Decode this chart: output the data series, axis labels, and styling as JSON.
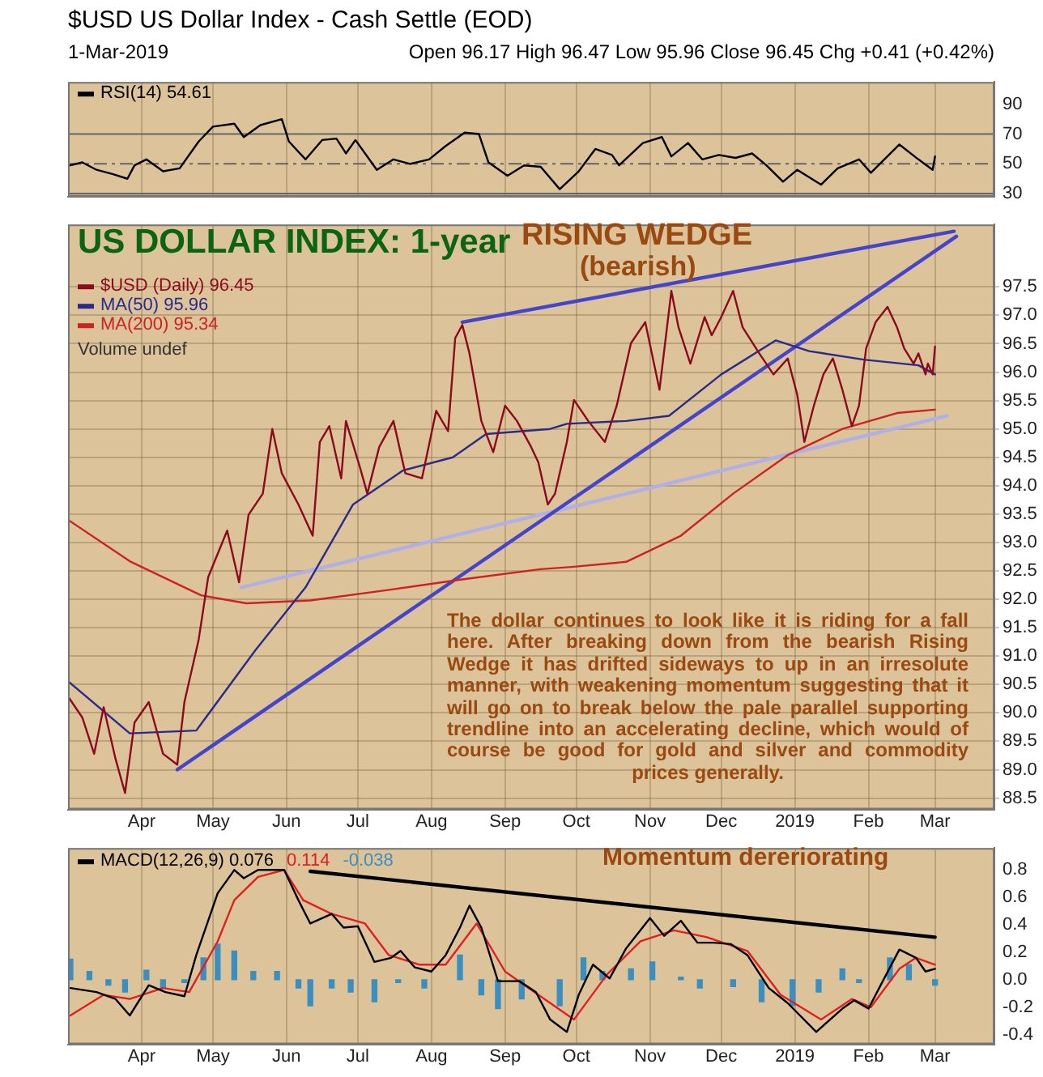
{
  "chart_data": [
    {
      "type": "line",
      "title": "$USD US Dollar Index - Cash Settle (EOD)",
      "annotations": [
        "1-Mar-2019",
        "Open 96.17 High 96.47 Low 95.96 Close 96.45 Chg +0.41 (+0.42%)"
      ],
      "xlim": [
        "2018-03-01",
        "2019-03-26"
      ],
      "xticks": [
        {
          "value": "2018-04-01",
          "label": null
        },
        {
          "value": "2018-05-01",
          "label": null
        },
        {
          "value": "2018-06-01",
          "label": null
        },
        {
          "value": "2018-07-01",
          "label": null
        },
        {
          "value": "2018-08-01",
          "label": null
        },
        {
          "value": "2018-09-01",
          "label": null
        },
        {
          "value": "2018-10-01",
          "label": null
        },
        {
          "value": "2018-11-01",
          "label": null
        },
        {
          "value": "2018-12-01",
          "label": null
        },
        {
          "value": "2019-01-01",
          "label": null
        },
        {
          "value": "2019-02-01",
          "label": null
        },
        {
          "value": "2019-03-01",
          "label": null
        }
      ],
      "ylim": [
        28,
        105
      ],
      "yticks": [
        30,
        50,
        70,
        90
      ],
      "grid": "x",
      "tick_labels": "y",
      "legend": "top left",
      "ref_lines": [
        {
          "axis": "y",
          "value": 70,
          "color": "#666666"
        },
        {
          "axis": "y",
          "value": 50,
          "color": "#666666",
          "line_style": "dashed"
        },
        {
          "axis": "y",
          "value": 30,
          "color": "#666666"
        }
      ],
      "series": [
        {
          "name": "RSI(14) 54.61",
          "color": "#000000",
          "x": [
            "2018-03-02",
            "2018-03-07",
            "2018-03-13",
            "2018-03-20",
            "2018-03-26",
            "2018-03-29",
            "2018-04-03",
            "2018-04-10",
            "2018-04-17",
            "2018-04-25",
            "2018-05-01",
            "2018-05-10",
            "2018-05-14",
            "2018-05-21",
            "2018-05-30",
            "2018-06-02",
            "2018-06-09",
            "2018-06-16",
            "2018-06-22",
            "2018-06-26",
            "2018-06-30",
            "2018-07-09",
            "2018-07-16",
            "2018-07-23",
            "2018-07-31",
            "2018-08-07",
            "2018-08-15",
            "2018-08-21",
            "2018-08-25",
            "2018-09-02",
            "2018-09-09",
            "2018-09-16",
            "2018-09-24",
            "2018-10-02",
            "2018-10-09",
            "2018-10-16",
            "2018-10-19",
            "2018-10-29",
            "2018-11-06",
            "2018-11-10",
            "2018-11-17",
            "2018-11-23",
            "2018-11-30",
            "2018-12-07",
            "2018-12-14",
            "2018-12-20",
            "2018-12-27",
            "2019-01-02",
            "2019-01-12",
            "2019-01-19",
            "2019-01-28",
            "2019-02-02",
            "2019-02-14",
            "2019-02-22",
            "2019-02-28",
            "2019-03-01"
          ],
          "values": [
            49,
            51,
            46,
            43,
            40,
            49,
            53,
            45,
            47,
            65,
            75,
            77,
            68,
            76,
            80,
            65,
            53,
            66,
            67,
            57,
            66,
            46,
            53,
            50,
            53,
            62,
            71,
            70,
            51,
            42,
            49,
            48,
            33,
            45,
            60,
            56,
            49,
            64,
            68,
            55,
            64,
            53,
            56,
            54,
            57,
            49,
            38,
            46,
            36,
            47,
            53,
            44,
            63,
            53,
            46,
            55
          ]
        }
      ]
    },
    {
      "type": "line",
      "annotations": [
        "US DOLLAR INDEX: 1-year",
        "RISING WEDGE",
        "(bearish)",
        "The dollar continues to look like it is riding for a fall here. After breaking down from the bearish Rising Wedge it has drifted sideways to up in an irresolute manner, with weakening momentum suggesting that it will go on to break below the pale parallel supporting trendline into an accelerating decline, which would of course be good for gold and silver and commodity prices generally.",
        "Volume undef"
      ],
      "xlim": [
        "2018-03-01",
        "2019-03-26"
      ],
      "xticks": [
        {
          "value": "2018-04-01",
          "label": "Apr"
        },
        {
          "value": "2018-05-01",
          "label": "May"
        },
        {
          "value": "2018-06-01",
          "label": "Jun"
        },
        {
          "value": "2018-07-01",
          "label": "Jul"
        },
        {
          "value": "2018-08-01",
          "label": "Aug"
        },
        {
          "value": "2018-09-01",
          "label": "Sep"
        },
        {
          "value": "2018-10-01",
          "label": "Oct"
        },
        {
          "value": "2018-11-01",
          "label": "Nov"
        },
        {
          "value": "2018-12-01",
          "label": "Dec"
        },
        {
          "value": "2019-01-01",
          "label": "2019"
        },
        {
          "value": "2019-02-01",
          "label": "Feb"
        },
        {
          "value": "2019-03-01",
          "label": "Mar"
        }
      ],
      "ylim": [
        88.3,
        98.6
      ],
      "yticks": [
        88.5,
        {
          "value": 89,
          "label": "89.0"
        },
        89.5,
        {
          "value": 90,
          "label": "90.0"
        },
        90.5,
        {
          "value": 91,
          "label": "91.0"
        },
        91.5,
        {
          "value": 92,
          "label": "92.0"
        },
        92.5,
        {
          "value": 93,
          "label": "93.0"
        },
        93.5,
        {
          "value": 94,
          "label": "94.0"
        },
        94.5,
        {
          "value": 95,
          "label": "95.0"
        },
        95.5,
        {
          "value": 96,
          "label": "96.0"
        },
        96.5,
        {
          "value": 97,
          "label": "97.0"
        },
        97.5
      ],
      "grid": true,
      "legend": "top left",
      "series": [
        {
          "name": "$USD (Daily) 96.45",
          "color": "#8b0a1e",
          "x": [
            "2018-03-01",
            "2018-03-07",
            "2018-03-12",
            "2018-03-16",
            "2018-03-21",
            "2018-03-25",
            "2018-03-29",
            "2018-04-04",
            "2018-04-10",
            "2018-04-16",
            "2018-04-19",
            "2018-04-25",
            "2018-04-29",
            "2018-05-07",
            "2018-05-12",
            "2018-05-16",
            "2018-05-22",
            "2018-05-26",
            "2018-05-30",
            "2018-06-06",
            "2018-06-12",
            "2018-06-15",
            "2018-06-19",
            "2018-06-24",
            "2018-06-26",
            "2018-07-02",
            "2018-07-05",
            "2018-07-10",
            "2018-07-16",
            "2018-07-21",
            "2018-07-28",
            "2018-08-03",
            "2018-08-08",
            "2018-08-11",
            "2018-08-14",
            "2018-08-17",
            "2018-08-22",
            "2018-08-27",
            "2018-09-01",
            "2018-09-06",
            "2018-09-12",
            "2018-09-15",
            "2018-09-19",
            "2018-09-22",
            "2018-09-27",
            "2018-09-30",
            "2018-10-06",
            "2018-10-13",
            "2018-10-18",
            "2018-10-24",
            "2018-10-30",
            "2018-11-05",
            "2018-11-10",
            "2018-11-13",
            "2018-11-18",
            "2018-11-24",
            "2018-11-27",
            "2018-12-01",
            "2018-12-06",
            "2018-12-10",
            "2018-12-17",
            "2018-12-23",
            "2018-12-29",
            "2019-01-02",
            "2019-01-05",
            "2019-01-09",
            "2019-01-13",
            "2019-01-17",
            "2019-01-21",
            "2019-01-25",
            "2019-01-28",
            "2019-01-31",
            "2019-02-04",
            "2019-02-09",
            "2019-02-13",
            "2019-02-16",
            "2019-02-20",
            "2019-02-22",
            "2019-02-25",
            "2019-02-26",
            "2019-02-28",
            "2019-03-01"
          ],
          "values": [
            90.29,
            89.92,
            89.28,
            90.1,
            89.19,
            88.59,
            89.83,
            90.19,
            89.28,
            89.09,
            90.19,
            91.29,
            92.39,
            93.21,
            92.3,
            93.49,
            93.86,
            95.0,
            94.22,
            93.67,
            93.12,
            94.77,
            95.05,
            94.13,
            95.14,
            94.31,
            93.86,
            94.68,
            95.14,
            94.22,
            94.13,
            95.32,
            94.96,
            96.6,
            96.83,
            96.33,
            95.14,
            94.59,
            95.41,
            95.14,
            94.68,
            94.41,
            93.67,
            93.86,
            94.77,
            95.51,
            95.14,
            94.77,
            95.41,
            96.51,
            96.88,
            95.69,
            97.43,
            96.79,
            96.15,
            96.97,
            96.65,
            96.97,
            97.43,
            96.79,
            96.33,
            95.96,
            96.24,
            95.6,
            94.77,
            95.41,
            95.96,
            96.24,
            95.69,
            95.05,
            95.41,
            96.42,
            96.88,
            97.15,
            96.79,
            96.42,
            96.15,
            96.33,
            95.96,
            96.15,
            95.96,
            96.45
          ]
        },
        {
          "name": "MA(50) 95.96",
          "color": "#2a2a8c",
          "x": [
            "2018-03-01",
            "2018-03-27",
            "2018-04-24",
            "2018-05-19",
            "2018-06-09",
            "2018-06-29",
            "2018-07-20",
            "2018-08-10",
            "2018-08-24",
            "2018-09-20",
            "2018-09-27",
            "2018-10-22",
            "2018-11-09",
            "2018-12-01",
            "2018-12-24",
            "2019-01-07",
            "2019-01-30",
            "2019-02-22",
            "2019-03-01"
          ],
          "values": [
            90.56,
            89.64,
            89.69,
            91.11,
            92.21,
            93.67,
            94.27,
            94.5,
            94.91,
            95.0,
            95.09,
            95.14,
            95.23,
            95.96,
            96.56,
            96.37,
            96.22,
            96.12,
            95.96
          ]
        },
        {
          "name": "MA(200) 95.34",
          "color": "#cc2222",
          "x": [
            "2018-03-01",
            "2018-03-27",
            "2018-04-26",
            "2018-05-15",
            "2018-06-11",
            "2018-07-13",
            "2018-08-14",
            "2018-09-16",
            "2018-09-29",
            "2018-10-22",
            "2018-11-14",
            "2018-12-06",
            "2018-12-29",
            "2019-01-21",
            "2019-02-13",
            "2019-03-01"
          ],
          "values": [
            93.4,
            92.67,
            92.07,
            91.93,
            91.98,
            92.16,
            92.35,
            92.53,
            92.57,
            92.66,
            93.12,
            93.86,
            94.54,
            95.0,
            95.28,
            95.34
          ]
        },
        {
          "color": "#4444cc",
          "x": [
            "2018-08-14",
            "2019-03-09"
          ],
          "values": [
            96.88,
            98.48
          ]
        },
        {
          "color": "#4444cc",
          "x": [
            "2018-04-16",
            "2019-03-10"
          ],
          "values": [
            89.0,
            98.39
          ]
        },
        {
          "color": "#b0b0e8",
          "x": [
            "2018-05-13",
            "2019-03-06"
          ],
          "values": [
            92.21,
            95.23
          ]
        }
      ]
    },
    {
      "type": "line",
      "annotations": [
        "Momentum dereriorating"
      ],
      "xlim": [
        "2018-03-01",
        "2019-03-26"
      ],
      "xticks": [
        {
          "value": "2018-04-01",
          "label": "Apr"
        },
        {
          "value": "2018-05-01",
          "label": "May"
        },
        {
          "value": "2018-06-01",
          "label": "Jun"
        },
        {
          "value": "2018-07-01",
          "label": "Jul"
        },
        {
          "value": "2018-08-01",
          "label": "Aug"
        },
        {
          "value": "2018-09-01",
          "label": "Sep"
        },
        {
          "value": "2018-10-01",
          "label": "Oct"
        },
        {
          "value": "2018-11-01",
          "label": "Nov"
        },
        {
          "value": "2018-12-01",
          "label": "Dec"
        },
        {
          "value": "2019-01-01",
          "label": "2019"
        },
        {
          "value": "2019-02-01",
          "label": "Feb"
        },
        {
          "value": "2019-03-01",
          "label": "Mar"
        }
      ],
      "ylim": [
        -0.47,
        0.96
      ],
      "yticks": [
        -0.4,
        -0.2,
        {
          "value": 0,
          "label": "0.0"
        },
        0.2,
        0.4,
        0.6,
        0.8
      ],
      "grid": "x",
      "legend": "top left",
      "series": [
        {
          "name": "MACD(12,26,9) 0.076",
          "color": "#000000",
          "x": [
            "2018-03-02",
            "2018-03-13",
            "2018-03-21",
            "2018-03-27",
            "2018-04-04",
            "2018-04-11",
            "2018-04-19",
            "2018-04-24",
            "2018-05-03",
            "2018-05-10",
            "2018-05-14",
            "2018-05-20",
            "2018-05-31",
            "2018-06-06",
            "2018-06-11",
            "2018-06-20",
            "2018-06-25",
            "2018-07-01",
            "2018-07-08",
            "2018-07-15",
            "2018-07-19",
            "2018-07-25",
            "2018-08-01",
            "2018-08-07",
            "2018-08-13",
            "2018-08-17",
            "2018-08-22",
            "2018-08-29",
            "2018-09-07",
            "2018-09-14",
            "2018-09-20",
            "2018-09-27",
            "2018-10-02",
            "2018-10-08",
            "2018-10-15",
            "2018-10-22",
            "2018-11-01",
            "2018-11-07",
            "2018-11-14",
            "2018-11-21",
            "2018-11-28",
            "2018-12-05",
            "2018-12-12",
            "2018-12-21",
            "2018-12-29",
            "2019-01-10",
            "2019-01-21",
            "2019-01-26",
            "2019-02-01",
            "2019-02-07",
            "2019-02-14",
            "2019-02-21",
            "2019-02-25",
            "2019-03-01"
          ],
          "values": [
            -0.06,
            -0.09,
            -0.14,
            -0.26,
            -0.04,
            -0.09,
            -0.12,
            0.18,
            0.63,
            0.8,
            0.74,
            0.8,
            0.8,
            0.58,
            0.41,
            0.48,
            0.38,
            0.39,
            0.13,
            0.16,
            0.21,
            0.09,
            0.06,
            0.18,
            0.38,
            0.54,
            0.38,
            -0.01,
            -0.01,
            -0.09,
            -0.29,
            -0.38,
            -0.11,
            0.11,
            0.01,
            0.23,
            0.45,
            0.32,
            0.43,
            0.27,
            0.27,
            0.26,
            0.18,
            -0.06,
            -0.17,
            -0.38,
            -0.21,
            -0.15,
            -0.21,
            -0.01,
            0.22,
            0.16,
            0.06,
            0.08
          ]
        },
        {
          "name": "0.114",
          "color": "#e02020",
          "x": [
            "2018-03-02",
            "2018-03-16",
            "2018-03-27",
            "2018-04-10",
            "2018-04-21",
            "2018-05-03",
            "2018-05-10",
            "2018-05-20",
            "2018-05-31",
            "2018-06-08",
            "2018-06-20",
            "2018-07-04",
            "2018-07-14",
            "2018-07-27",
            "2018-08-07",
            "2018-08-20",
            "2018-09-01",
            "2018-09-15",
            "2018-09-30",
            "2018-10-14",
            "2018-10-28",
            "2018-11-11",
            "2018-11-25",
            "2018-12-12",
            "2018-12-26",
            "2019-01-12",
            "2019-01-25",
            "2019-02-02",
            "2019-02-14",
            "2019-02-21",
            "2019-03-01"
          ],
          "values": [
            -0.26,
            -0.11,
            -0.14,
            -0.06,
            -0.09,
            0.28,
            0.58,
            0.75,
            0.8,
            0.58,
            0.48,
            0.41,
            0.18,
            0.11,
            0.11,
            0.41,
            0.06,
            -0.11,
            -0.29,
            0.04,
            0.28,
            0.36,
            0.31,
            0.21,
            -0.11,
            -0.29,
            -0.14,
            -0.2,
            0.08,
            0.16,
            0.11
          ]
        },
        {
          "name": "-0.038",
          "type": "bar",
          "color": "#3a8fc0",
          "x": [
            "2018-03-02",
            "2018-03-10",
            "2018-03-18",
            "2018-03-25",
            "2018-04-03",
            "2018-04-10",
            "2018-04-19",
            "2018-04-27",
            "2018-05-03",
            "2018-05-10",
            "2018-05-18",
            "2018-05-28",
            "2018-06-06",
            "2018-06-11",
            "2018-06-20",
            "2018-06-28",
            "2018-07-08",
            "2018-07-18",
            "2018-07-29",
            "2018-08-13",
            "2018-08-22",
            "2018-08-29",
            "2018-09-08",
            "2018-09-24",
            "2018-10-04",
            "2018-10-12",
            "2018-10-24",
            "2018-11-02",
            "2018-11-14",
            "2018-11-22",
            "2018-12-06",
            "2018-12-18",
            "2018-12-31",
            "2019-01-11",
            "2019-01-21",
            "2019-01-28",
            "2019-02-10",
            "2019-02-18",
            "2019-03-01"
          ],
          "values": [
            0.15,
            0.06,
            -0.04,
            -0.09,
            0.07,
            -0.06,
            -0.02,
            0.16,
            0.26,
            0.21,
            0.06,
            0.06,
            -0.06,
            -0.19,
            -0.06,
            -0.09,
            -0.16,
            -0.02,
            -0.06,
            0.18,
            -0.11,
            -0.21,
            -0.14,
            -0.19,
            0.16,
            0.06,
            0.08,
            0.13,
            0.02,
            -0.06,
            -0.05,
            -0.16,
            -0.19,
            -0.09,
            0.08,
            -0.02,
            0.16,
            0.11,
            -0.04
          ]
        },
        {
          "color": "#000000",
          "x": [
            "2018-06-11",
            "2019-03-01"
          ],
          "values": [
            0.79,
            0.31
          ]
        }
      ]
    }
  ]
}
